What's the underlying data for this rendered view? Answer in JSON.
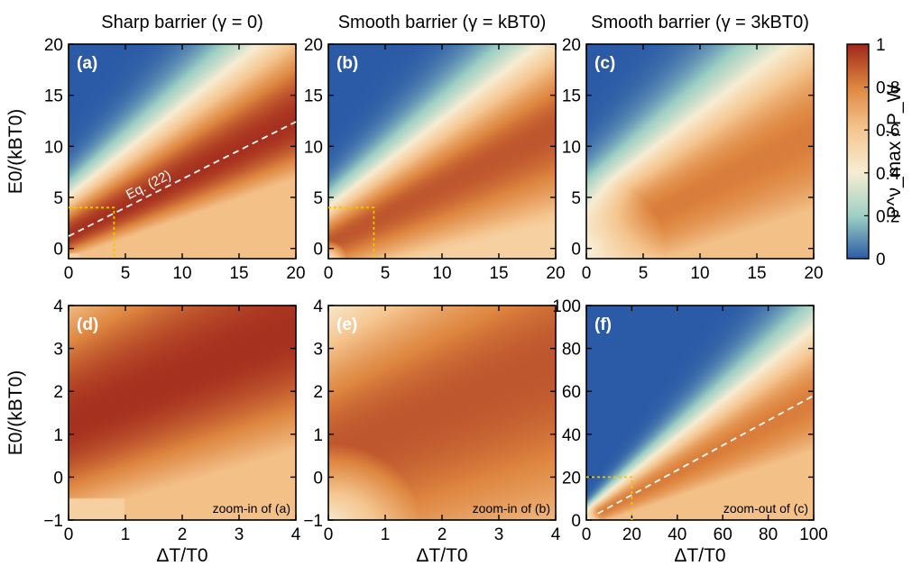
{
  "chart_data": {
    "type": "heatmap",
    "colorbar": {
      "label": "P^ν_max / P_W",
      "range": [
        0,
        1
      ],
      "ticks": [
        "0",
        "0.2",
        "0.4",
        "0.6",
        "0.8",
        "1"
      ],
      "colors": [
        "#2b5ba6",
        "#9ed0c4",
        "#f7edd3",
        "#f5c690",
        "#de8640",
        "#a0271b"
      ]
    },
    "panels": [
      {
        "label": "(a)",
        "title": "Sharp barrier (γ = 0)",
        "gamma": 0,
        "xlabel": "",
        "ylabel": "E0/(kBT0)",
        "xlim": [
          0,
          20
        ],
        "ylim": [
          -1,
          20
        ],
        "xticks": [
          "0",
          "5",
          "10",
          "15",
          "20"
        ],
        "yticks": [
          "0",
          "5",
          "10",
          "15",
          "20"
        ],
        "annotation": {
          "text": "Eq. (22)",
          "line": [
            [
              0,
              1.2
            ],
            [
              20,
              12.4
            ]
          ]
        },
        "inset_box": [
          [
            0,
            4
          ],
          [
            4,
            4
          ],
          [
            4,
            -1
          ]
        ]
      },
      {
        "label": "(b)",
        "title": "Smooth barrier (γ = kBT0)",
        "gamma": 1,
        "xlabel": "",
        "ylabel": "",
        "xlim": [
          0,
          20
        ],
        "ylim": [
          -1,
          20
        ],
        "xticks": [
          "0",
          "5",
          "10",
          "15",
          "20"
        ],
        "yticks": [
          "0",
          "5",
          "10",
          "15",
          "20"
        ],
        "inset_box": [
          [
            0,
            4
          ],
          [
            4,
            4
          ],
          [
            4,
            -1
          ]
        ]
      },
      {
        "label": "(c)",
        "title": "Smooth barrier (γ = 3kBT0)",
        "gamma": 3,
        "xlabel": "",
        "ylabel": "",
        "xlim": [
          0,
          20
        ],
        "ylim": [
          -1,
          20
        ],
        "xticks": [
          "0",
          "5",
          "10",
          "15",
          "20"
        ],
        "yticks": [
          "0",
          "5",
          "10",
          "15",
          "20"
        ]
      },
      {
        "label": "(d)",
        "title": "",
        "gamma": 0,
        "xlabel": "ΔT/T0",
        "ylabel": "E0/(kBT0)",
        "xlim": [
          0,
          4
        ],
        "ylim": [
          -1,
          4
        ],
        "xticks": [
          "0",
          "1",
          "2",
          "3",
          "4"
        ],
        "yticks": [
          "−1",
          "0",
          "1",
          "2",
          "3",
          "4"
        ],
        "note": "zoom-in of (a)"
      },
      {
        "label": "(e)",
        "title": "",
        "gamma": 1,
        "xlabel": "ΔT/T0",
        "ylabel": "",
        "xlim": [
          0,
          4
        ],
        "ylim": [
          -1,
          4
        ],
        "xticks": [
          "0",
          "1",
          "2",
          "3",
          "4"
        ],
        "yticks": [
          "−1",
          "0",
          "1",
          "2",
          "3",
          "4"
        ],
        "note": "zoom-in of (b)"
      },
      {
        "label": "(f)",
        "title": "",
        "gamma": 3,
        "xlabel": "ΔT/T0",
        "ylabel": "",
        "xlim": [
          0,
          100
        ],
        "ylim": [
          0,
          100
        ],
        "xticks": [
          "0",
          "20",
          "40",
          "60",
          "80",
          "100"
        ],
        "yticks": [
          "0",
          "20",
          "40",
          "60",
          "80",
          "100"
        ],
        "note": "zoom-out of (c)",
        "line": [
          [
            5,
            3
          ],
          [
            100,
            58
          ]
        ],
        "inset_box": [
          [
            0,
            20
          ],
          [
            20,
            20
          ],
          [
            20,
            0
          ]
        ]
      }
    ]
  }
}
